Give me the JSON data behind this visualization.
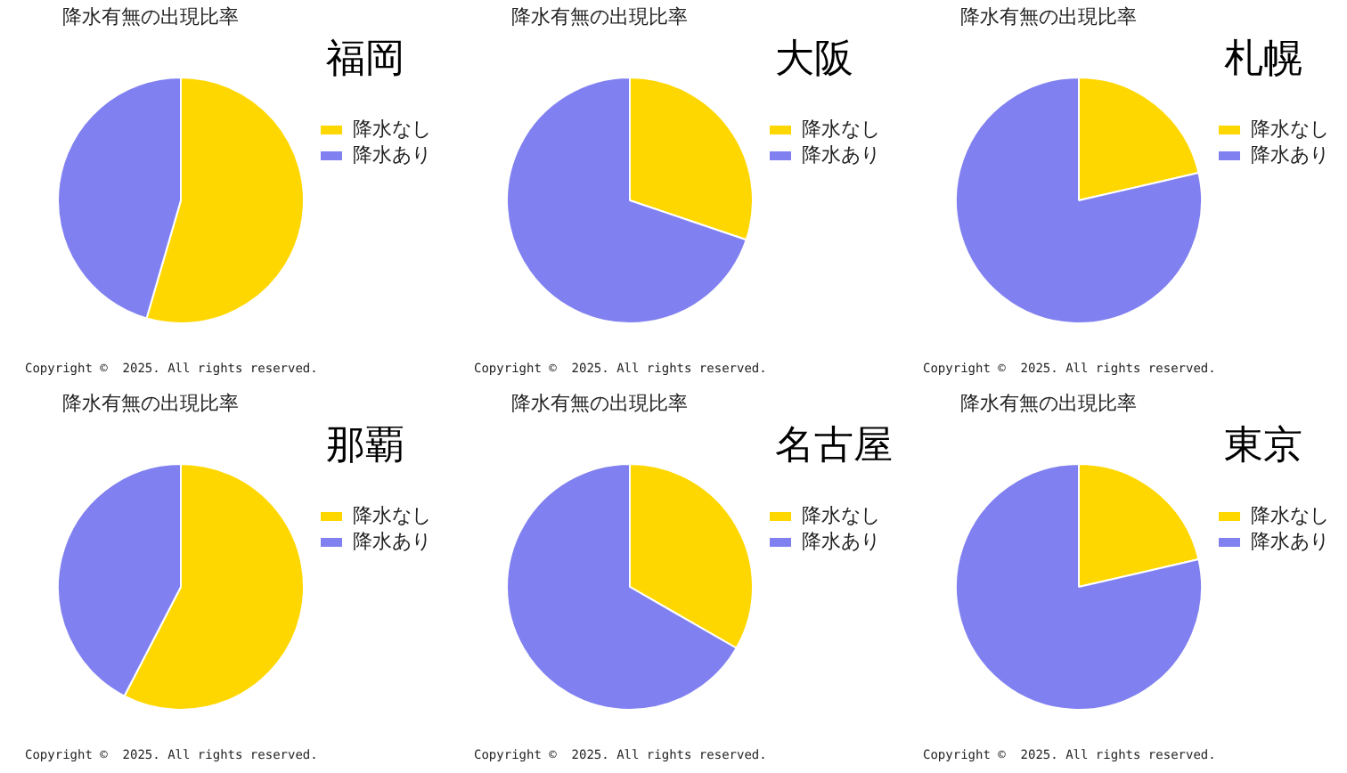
{
  "chart_data": [
    {
      "type": "pie",
      "title": "降水有無の出現比率",
      "subtitle": "福岡",
      "categories": [
        "降水なし",
        "降水あり"
      ],
      "values": [
        54.5,
        45.5
      ],
      "colors": [
        "#ffd700",
        "#8080f0"
      ],
      "legend": "top right",
      "annotations": [
        "Copyright ©  2025. All rights reserved."
      ]
    },
    {
      "type": "pie",
      "title": "降水有無の出現比率",
      "subtitle": "大阪",
      "categories": [
        "降水なし",
        "降水あり"
      ],
      "values": [
        30.2,
        69.8
      ],
      "colors": [
        "#ffd700",
        "#8080f0"
      ],
      "legend": "top right",
      "annotations": [
        "Copyright ©  2025. All rights reserved."
      ]
    },
    {
      "type": "pie",
      "title": "降水有無の出現比率",
      "subtitle": "札幌",
      "categories": [
        "降水なし",
        "降水あり"
      ],
      "values": [
        21.4,
        78.6
      ],
      "colors": [
        "#ffd700",
        "#8080f0"
      ],
      "legend": "top right",
      "annotations": [
        "Copyright ©  2025. All rights reserved."
      ]
    },
    {
      "type": "pie",
      "title": "降水有無の出現比率",
      "subtitle": "那覇",
      "categories": [
        "降水なし",
        "降水あり"
      ],
      "values": [
        57.6,
        42.4
      ],
      "colors": [
        "#ffd700",
        "#8080f0"
      ],
      "legend": "top right",
      "annotations": [
        "Copyright ©  2025. All rights reserved."
      ]
    },
    {
      "type": "pie",
      "title": "降水有無の出現比率",
      "subtitle": "名古屋",
      "categories": [
        "降水なし",
        "降水あり"
      ],
      "values": [
        33.3,
        66.7
      ],
      "colors": [
        "#ffd700",
        "#8080f0"
      ],
      "legend": "top right",
      "annotations": [
        "Copyright ©  2025. All rights reserved."
      ]
    },
    {
      "type": "pie",
      "title": "降水有無の出現比率",
      "subtitle": "東京",
      "categories": [
        "降水なし",
        "降水あり"
      ],
      "values": [
        21.4,
        78.6
      ],
      "colors": [
        "#ffd700",
        "#8080f0"
      ],
      "legend": "top right",
      "annotations": [
        "Copyright ©  2025. All rights reserved."
      ]
    }
  ]
}
